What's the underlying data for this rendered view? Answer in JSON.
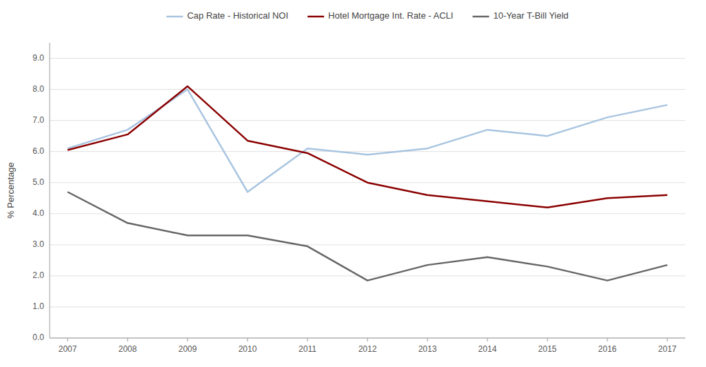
{
  "chart_data": {
    "type": "line",
    "x": [
      2007,
      2008,
      2009,
      2010,
      2011,
      2012,
      2013,
      2014,
      2015,
      2016,
      2017
    ],
    "series": [
      {
        "name": "Cap Rate - Historical NOI",
        "color": "#a8c4e0",
        "values": [
          6.1,
          6.7,
          8.0,
          4.7,
          6.1,
          5.9,
          6.1,
          6.7,
          6.5,
          7.1,
          7.5
        ]
      },
      {
        "name": "Hotel Mortgage Int. Rate - ACLI",
        "color": "#8b0000",
        "values": [
          6.05,
          6.55,
          8.1,
          6.35,
          5.95,
          5.0,
          4.6,
          4.4,
          4.2,
          4.5,
          4.6
        ]
      },
      {
        "name": "10-Year T-Bill Yield",
        "color": "#666666",
        "values": [
          4.7,
          3.7,
          3.3,
          3.3,
          2.95,
          1.85,
          2.35,
          2.6,
          2.3,
          1.85,
          2.35
        ]
      }
    ],
    "ylabel": "% Percentage",
    "ylim": [
      0.0,
      9.5
    ],
    "yticks": [
      {
        "value": 0.0,
        "label": "0.0"
      },
      {
        "value": 1.0,
        "label": "1.0"
      },
      {
        "value": 2.0,
        "label": "2.0"
      },
      {
        "value": 3.0,
        "label": "3.0"
      },
      {
        "value": 4.0,
        "label": "4.0"
      },
      {
        "value": 5.0,
        "label": "5.0"
      },
      {
        "value": 6.0,
        "label": "6.0"
      },
      {
        "value": 7.0,
        "label": "7.0"
      },
      {
        "value": 8.0,
        "label": "8.0"
      },
      {
        "value": 9.0,
        "label": "9.0"
      }
    ],
    "xlim": [
      2006.7,
      2017.3
    ],
    "xticks": [
      2007,
      2008,
      2009,
      2010,
      2011,
      2012,
      2013,
      2014,
      2015,
      2016,
      2017
    ],
    "grid": "y",
    "legend": "top"
  }
}
